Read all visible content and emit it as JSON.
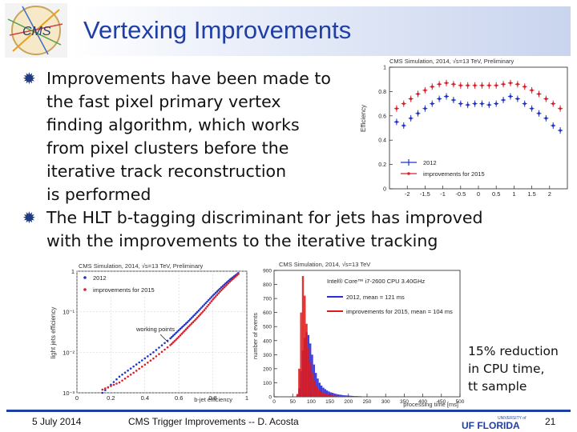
{
  "slide": {
    "title": "Vertexing Improvements",
    "logo_text": "CMS",
    "bullets": [
      [
        "Improvements have been made to",
        "the fast pixel primary vertex",
        "finding algorithm, which works",
        "from pixel clusters before the",
        "iterative track reconstruction",
        "is performed"
      ],
      [
        "The HLT b-tagging discriminant for jets has improved",
        "with the improvements to the iterative tracking"
      ]
    ],
    "side_note": [
      "15% reduction",
      "in CPU time,",
      "tt sample"
    ],
    "footer": {
      "date": "5 July 2014",
      "center": "CMS Trigger Improvements -- D. Acosta",
      "page": "21"
    },
    "uf_logo": {
      "top": "UNIVERSITY of",
      "main": "UF FLORIDA"
    }
  },
  "chart_data": [
    {
      "type": "scatter",
      "header": "CMS Simulation, 2014, √s=13 TeV, Preliminary",
      "ylabel": "Efficiency",
      "xlim": [
        -2.5,
        2.5
      ],
      "ylim": [
        0,
        1
      ],
      "xticks": [
        "-2",
        "-1.5",
        "-1",
        "-0.5",
        "0",
        "0.5",
        "1",
        "1.5",
        "2"
      ],
      "yticks": [
        "0",
        "0.2",
        "0.4",
        "0.6",
        "0.8",
        "1"
      ],
      "legend_position": "bottom-left",
      "series": [
        {
          "name": "2012",
          "color": "#1f35c8",
          "x": [
            -2.3,
            -2.1,
            -1.9,
            -1.7,
            -1.5,
            -1.3,
            -1.1,
            -0.9,
            -0.7,
            -0.5,
            -0.3,
            -0.1,
            0.1,
            0.3,
            0.5,
            0.7,
            0.9,
            1.1,
            1.3,
            1.5,
            1.7,
            1.9,
            2.1,
            2.3
          ],
          "y": [
            0.55,
            0.52,
            0.58,
            0.62,
            0.66,
            0.7,
            0.74,
            0.76,
            0.73,
            0.7,
            0.69,
            0.7,
            0.7,
            0.69,
            0.7,
            0.73,
            0.76,
            0.74,
            0.7,
            0.66,
            0.62,
            0.58,
            0.52,
            0.48
          ]
        },
        {
          "name": "improvements for 2015",
          "color": "#d8202a",
          "x": [
            -2.3,
            -2.1,
            -1.9,
            -1.7,
            -1.5,
            -1.3,
            -1.1,
            -0.9,
            -0.7,
            -0.5,
            -0.3,
            -0.1,
            0.1,
            0.3,
            0.5,
            0.7,
            0.9,
            1.1,
            1.3,
            1.5,
            1.7,
            1.9,
            2.1,
            2.3
          ],
          "y": [
            0.66,
            0.7,
            0.74,
            0.78,
            0.81,
            0.84,
            0.86,
            0.87,
            0.86,
            0.85,
            0.85,
            0.85,
            0.85,
            0.85,
            0.85,
            0.86,
            0.87,
            0.86,
            0.84,
            0.81,
            0.78,
            0.74,
            0.7,
            0.66
          ]
        }
      ]
    },
    {
      "type": "scatter",
      "header": "CMS Simulation, 2014, √s=13 TeV, Preliminary",
      "xlabel": "b-jet efficiency",
      "ylabel": "light jets efficiency",
      "log_y": true,
      "xlim": [
        0,
        1
      ],
      "ylim_exp": [
        -3,
        0
      ],
      "xticks": [
        "0",
        "0.2",
        "0.4",
        "0.6",
        "0.8",
        "1"
      ],
      "yticks": [
        "10⁻³",
        "10⁻²",
        "10⁻¹",
        "1"
      ],
      "legend_position": "top-left",
      "annotation": "working points",
      "series": [
        {
          "name": "2012",
          "color": "#1f35c8",
          "x": [
            0.15,
            0.25,
            0.35,
            0.45,
            0.55,
            0.6,
            0.65,
            0.7,
            0.75,
            0.8,
            0.85,
            0.9,
            0.95
          ],
          "y": [
            0.001,
            0.0025,
            0.005,
            0.01,
            0.022,
            0.035,
            0.055,
            0.09,
            0.15,
            0.25,
            0.4,
            0.62,
            0.9
          ]
        },
        {
          "name": "improvements for 2015",
          "color": "#d8202a",
          "x": [
            0.15,
            0.25,
            0.35,
            0.45,
            0.55,
            0.6,
            0.65,
            0.7,
            0.75,
            0.8,
            0.85,
            0.9,
            0.95
          ],
          "y": [
            0.0012,
            0.0018,
            0.0035,
            0.007,
            0.015,
            0.024,
            0.04,
            0.065,
            0.11,
            0.2,
            0.34,
            0.55,
            0.85
          ]
        }
      ]
    },
    {
      "type": "bar",
      "header": "CMS Simulation, 2014, √s=13 TeV",
      "xlabel": "processing time [ms]",
      "ylabel": "number of events",
      "ylim": [
        0,
        900
      ],
      "yticks": [
        "0",
        "100",
        "200",
        "300",
        "400",
        "500",
        "600",
        "700",
        "800",
        "900"
      ],
      "xticks": [
        "0",
        "50",
        "100",
        "150",
        "200",
        "250",
        "300",
        "350",
        "400",
        "450",
        "500"
      ],
      "legend_title": "Intel® Core™ i7-2600 CPU 3.40GHz",
      "bin_width": 5,
      "series": [
        {
          "name": "2012, mean = 121 ms",
          "color": "#2a2ad8",
          "x_start": 60,
          "values": [
            10,
            60,
            180,
            330,
            420,
            460,
            440,
            380,
            300,
            230,
            170,
            130,
            100,
            80,
            65,
            55,
            45,
            38,
            32,
            28,
            24,
            20,
            17,
            15,
            13,
            11,
            10,
            9,
            8,
            7,
            6,
            5,
            5,
            4,
            4
          ]
        },
        {
          "name": "improvements for 2015, mean = 104 ms",
          "color": "#e01a1a",
          "x_start": 60,
          "values": [
            20,
            200,
            600,
            860,
            720,
            520,
            350,
            240,
            170,
            120,
            85,
            60,
            45,
            35,
            28,
            22,
            18,
            15,
            12,
            10,
            8,
            7,
            6,
            5,
            4,
            4,
            3,
            3,
            2,
            2,
            2,
            2,
            1,
            1,
            1
          ]
        }
      ]
    }
  ]
}
